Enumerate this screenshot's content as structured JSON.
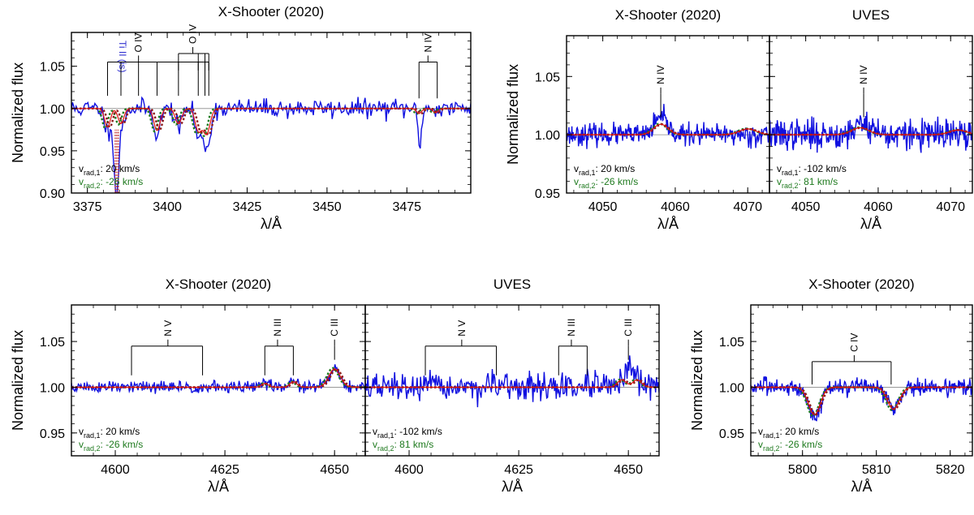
{
  "colors": {
    "observed": "#1010e0",
    "model": "#e01010",
    "model_primary": "#8b1a1a",
    "model_secondary": "#1f7a1f",
    "vrad1_text": "#000000",
    "vrad2_text": "#1f7a1f",
    "ism_label": "#3030d0",
    "ism_line": "#c03030",
    "reference_line": "#8a8a8a"
  },
  "common": {
    "ylabel": "Normalized flux",
    "xlabel": "λ/Å",
    "vrad1_label": "v",
    "vrad1_sub": "rad,1",
    "vrad2_label": "v",
    "vrad2_sub": "rad,2"
  },
  "chart_data": [
    {
      "id": "p1",
      "type": "line",
      "title": "X-Shooter (2020)",
      "xlim": [
        3370,
        3495
      ],
      "ylim": [
        0.9,
        1.09
      ],
      "xticks": [
        3375,
        3400,
        3425,
        3450,
        3475
      ],
      "xtick_labels": [
        "3375",
        "3400",
        "3425",
        "3450",
        "3475"
      ],
      "yticks": [
        0.9,
        0.95,
        1.0,
        1.05
      ],
      "ytick_labels": [
        "0.90",
        "0.95",
        "1.00",
        "1.05"
      ],
      "show_ylabel": true,
      "vrad1": ":  20 km/s",
      "vrad2": ": -26 km/s",
      "noise": 0.0055,
      "seed": 11,
      "lines": [
        {
          "c": 3384.0,
          "d": 0.1,
          "w": 0.7,
          "name": "Ti II (is)"
        },
        {
          "c": 3381.3,
          "d": 0.028,
          "w": 0.9,
          "name": "O IV"
        },
        {
          "c": 3385.5,
          "d": 0.022,
          "w": 0.9,
          "name": "O IV"
        },
        {
          "c": 3396.8,
          "d": 0.03,
          "w": 1.0,
          "name": "O IV"
        },
        {
          "c": 3403.5,
          "d": 0.022,
          "w": 1.0,
          "name": "O IV"
        },
        {
          "c": 3409.7,
          "d": 0.032,
          "w": 1.0,
          "name": "O IV"
        },
        {
          "c": 3411.8,
          "d": 0.028,
          "w": 1.0,
          "name": "O IV"
        },
        {
          "c": 3413.0,
          "d": 0.025,
          "w": 1.0,
          "name": "O IV"
        },
        {
          "c": 3479.0,
          "d": 0.04,
          "w": 0.6,
          "name": "N IV"
        }
      ],
      "model_lines": [
        {
          "c": 3381.3,
          "d": 0.022,
          "w": 0.9
        },
        {
          "c": 3385.5,
          "d": 0.018,
          "w": 0.9
        },
        {
          "c": 3396.8,
          "d": 0.026,
          "w": 1.0
        },
        {
          "c": 3403.5,
          "d": 0.018,
          "w": 1.0
        },
        {
          "c": 3409.7,
          "d": 0.026,
          "w": 1.0
        },
        {
          "c": 3412.3,
          "d": 0.03,
          "w": 1.1
        },
        {
          "c": 3478.8,
          "d": 0.006,
          "w": 0.8
        },
        {
          "c": 3484.0,
          "d": 0.005,
          "w": 0.8
        }
      ],
      "ids": [
        {
          "label": "Ti II (is)",
          "x_label": 3384.0,
          "ticks": [],
          "color": "ism",
          "x_ism": [
            3383.7,
            3384.2,
            3384.7
          ]
        },
        {
          "label": "O IV",
          "x_label": 3391.0,
          "ticks": [
            3381.3,
            3385.5,
            3391.0,
            3396.8,
            3403.5,
            3409.7,
            3411.8,
            3413.0
          ],
          "y_bar": 1.055,
          "y_tick": 1.015
        },
        {
          "label": "O IV",
          "x_label": 3408.0,
          "ticks": [
            3403.5,
            3409.7,
            3411.8,
            3413.0
          ],
          "y_bar": 1.065,
          "y_tick": 1.045
        },
        {
          "label": "N IV",
          "x_label": 3481.6,
          "ticks": [
            3478.8,
            3484.5
          ],
          "y_bar": 1.055,
          "y_tick": 1.012
        }
      ]
    },
    {
      "id": "p2",
      "type": "line",
      "title": "X-Shooter (2020)",
      "xlim": [
        4045,
        4073
      ],
      "ylim": [
        0.95,
        1.085
      ],
      "xticks": [
        4050,
        4060,
        4070
      ],
      "xtick_labels": [
        "4050",
        "4060",
        "4070"
      ],
      "yticks": [
        0.95,
        1.0,
        1.05
      ],
      "ytick_labels": [
        "0.95",
        "1.00",
        "1.05"
      ],
      "show_ylabel": true,
      "vrad1": ":  20 km/s",
      "vrad2": ": -26 km/s",
      "noise": 0.0045,
      "seed": 23,
      "lines": [
        {
          "c": 4058.0,
          "d": -0.014,
          "w": 0.9,
          "name": "N IV"
        }
      ],
      "model_lines": [
        {
          "c": 4058.0,
          "d": -0.009,
          "w": 1.0
        },
        {
          "c": 4070.0,
          "d": -0.005,
          "w": 1.2
        }
      ],
      "ids": [
        {
          "label": "N IV",
          "x_label": 4058.0,
          "ticks": [
            4058.0
          ],
          "y_bar": 1.035,
          "y_tick": 1.015
        }
      ]
    },
    {
      "id": "p3",
      "type": "line",
      "title": "UVES",
      "xlim": [
        4045,
        4073
      ],
      "ylim": [
        0.95,
        1.085
      ],
      "xticks": [
        4050,
        4060,
        4070
      ],
      "xtick_labels": [
        "4050",
        "4060",
        "4070"
      ],
      "yticks": [
        0.95,
        1.0,
        1.05
      ],
      "ytick_labels": [
        "0.95",
        "1.00",
        "1.05"
      ],
      "show_ylabel": false,
      "vrad1": ": -102 km/s",
      "vrad2": ":   81 km/s",
      "noise": 0.0065,
      "seed": 37,
      "lines": [
        {
          "c": 4058.0,
          "d": -0.01,
          "w": 1.2,
          "name": "N IV"
        }
      ],
      "model_lines": [
        {
          "c": 4057.5,
          "d": -0.006,
          "w": 1.2
        },
        {
          "c": 4071.0,
          "d": -0.004,
          "w": 1.2
        }
      ],
      "ids": [
        {
          "label": "N IV",
          "x_label": 4058.0,
          "ticks": [
            4058.0
          ],
          "y_bar": 1.035,
          "y_tick": 1.015
        }
      ]
    },
    {
      "id": "p4",
      "type": "line",
      "title": "X-Shooter (2020)",
      "xlim": [
        4590,
        4657
      ],
      "ylim": [
        0.925,
        1.09
      ],
      "xticks": [
        4600,
        4625,
        4650
      ],
      "xtick_labels": [
        "4600",
        "4625",
        "4650"
      ],
      "yticks": [
        0.95,
        1.0,
        1.05
      ],
      "ytick_labels": [
        "0.95",
        "1.00",
        "1.05"
      ],
      "show_ylabel": true,
      "vrad1": ":  20 km/s",
      "vrad2": ": -26 km/s",
      "noise": 0.0035,
      "seed": 51,
      "lines": [
        {
          "c": 4634.1,
          "d": -0.006,
          "w": 0.8,
          "name": "N III"
        },
        {
          "c": 4640.6,
          "d": -0.008,
          "w": 0.8,
          "name": "N III"
        },
        {
          "c": 4650.0,
          "d": -0.022,
          "w": 1.2,
          "name": "C III"
        }
      ],
      "model_lines": [
        {
          "c": 4634.1,
          "d": -0.004,
          "w": 0.8
        },
        {
          "c": 4640.6,
          "d": -0.006,
          "w": 0.8
        },
        {
          "c": 4650.0,
          "d": -0.02,
          "w": 1.3
        }
      ],
      "ids": [
        {
          "label": "N V",
          "x_label": 4612.0,
          "ticks": [
            4603.7,
            4619.9
          ],
          "y_bar": 1.045,
          "y_tick": 1.013
        },
        {
          "label": "N III",
          "x_label": 4637.0,
          "ticks": [
            4634.1,
            4640.6
          ],
          "y_bar": 1.045,
          "y_tick": 1.013
        },
        {
          "label": "C III",
          "x_label": 4650.0,
          "ticks": [
            4650.0
          ],
          "y_bar": 1.045,
          "y_tick": 1.03
        }
      ]
    },
    {
      "id": "p5",
      "type": "line",
      "title": "UVES",
      "xlim": [
        4590,
        4657
      ],
      "ylim": [
        0.925,
        1.09
      ],
      "xticks": [
        4600,
        4625,
        4650
      ],
      "xtick_labels": [
        "4600",
        "4625",
        "4650"
      ],
      "yticks": [
        0.95,
        1.0,
        1.05
      ],
      "ytick_labels": [
        "0.95",
        "1.00",
        "1.05"
      ],
      "show_ylabel": false,
      "vrad1": ": -102 km/s",
      "vrad2": ":   81 km/s",
      "noise": 0.0075,
      "seed": 67,
      "lines": [
        {
          "c": 4650.5,
          "d": -0.014,
          "w": 1.6,
          "name": "C III"
        }
      ],
      "model_lines": [
        {
          "c": 4648.5,
          "d": -0.008,
          "w": 1.0
        },
        {
          "c": 4652.0,
          "d": -0.008,
          "w": 1.0
        }
      ],
      "ids": [
        {
          "label": "N V",
          "x_label": 4612.0,
          "ticks": [
            4603.7,
            4619.9
          ],
          "y_bar": 1.045,
          "y_tick": 1.013
        },
        {
          "label": "N III",
          "x_label": 4637.0,
          "ticks": [
            4634.1,
            4640.6
          ],
          "y_bar": 1.045,
          "y_tick": 1.013
        },
        {
          "label": "C III",
          "x_label": 4650.0,
          "ticks": [
            4650.0
          ],
          "y_bar": 1.045,
          "y_tick": 1.03
        }
      ]
    },
    {
      "id": "p6",
      "type": "line",
      "title": "X-Shooter (2020)",
      "xlim": [
        5793,
        5823
      ],
      "ylim": [
        0.925,
        1.09
      ],
      "xticks": [
        5800,
        5810,
        5820
      ],
      "xtick_labels": [
        "5800",
        "5810",
        "5820"
      ],
      "yticks": [
        0.95,
        1.0,
        1.05
      ],
      "ytick_labels": [
        "0.95",
        "1.00",
        "1.05"
      ],
      "show_ylabel": true,
      "vrad1": ":  20 km/s",
      "vrad2": ": -26 km/s",
      "noise": 0.0045,
      "seed": 83,
      "lines": [
        {
          "c": 5801.6,
          "d": 0.032,
          "w": 0.8,
          "name": "C IV"
        },
        {
          "c": 5812.3,
          "d": 0.022,
          "w": 0.8,
          "name": "C IV"
        }
      ],
      "model_lines": [
        {
          "c": 5801.6,
          "d": 0.03,
          "w": 0.8
        },
        {
          "c": 5812.3,
          "d": 0.024,
          "w": 0.8
        }
      ],
      "ids": [
        {
          "label": "C IV",
          "x_label": 5807.0,
          "ticks": [
            5801.3,
            5812.0
          ],
          "y_bar": 1.028,
          "y_tick": 1.003
        }
      ]
    }
  ]
}
